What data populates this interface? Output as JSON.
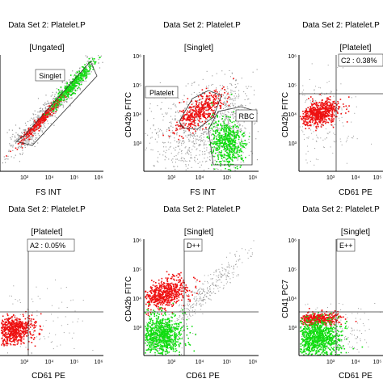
{
  "figure": "flow-cytometry-grid",
  "colors": {
    "red_population": "#ee1111",
    "green_population": "#11dd11",
    "gray_events": "#9a9a9a",
    "axis": "#000000",
    "gate_line": "#333333",
    "label_box": "#ffffff"
  },
  "chart_data": [
    {
      "type": "scatter",
      "title": "Data Set 2: Platelet.P",
      "gate": "[Ungated]",
      "xlabel": "FS INT",
      "ylabel": "",
      "x_ticks": [
        "10³",
        "10⁴",
        "10⁵",
        "10⁶"
      ],
      "y_ticks": [],
      "x_scale": "log",
      "regions": [
        {
          "label": "Singlet",
          "shape": "diagonal band"
        }
      ],
      "populations": [
        "gray diagonal events",
        "red population on singlet diagonal",
        "green population on singlet diagonal"
      ]
    },
    {
      "type": "scatter",
      "title": "Data Set 2: Platelet.P",
      "gate": "[Singlet]",
      "xlabel": "FS INT",
      "ylabel": "CD42b FITC",
      "x_ticks": [
        "10³",
        "10⁴",
        "10⁵",
        "10⁶"
      ],
      "y_ticks": [
        "10³",
        "10⁴",
        "10⁵",
        "10⁶"
      ],
      "x_scale": "log",
      "y_scale": "log",
      "regions": [
        {
          "label": "Platelet"
        },
        {
          "label": "RBC"
        }
      ],
      "populations": [
        "red platelets",
        "green red blood cells",
        "gray debris"
      ]
    },
    {
      "type": "scatter",
      "title": "Data Set 2: Platelet.P",
      "gate": "[Platelet]",
      "xlabel": "CD61 PE",
      "ylabel": "CD42b FITC",
      "x_ticks": [
        "10³",
        "10⁴",
        "10⁵",
        "10⁶"
      ],
      "y_ticks": [
        "10³",
        "10⁴",
        "10⁵",
        "10⁶"
      ],
      "x_scale": "log",
      "y_scale": "log",
      "quadrant_label": "C2 : 0.38%",
      "populations": [
        "red population upper-left quadrant"
      ]
    },
    {
      "type": "scatter",
      "title": "Data Set 2: Platelet.P",
      "gate": "[Platelet]",
      "xlabel": "CD61 PE",
      "ylabel": "",
      "x_ticks": [
        "10³",
        "10⁴",
        "10⁵",
        "10⁶"
      ],
      "y_ticks": [],
      "x_scale": "log",
      "quadrant_label": "A2 : 0.05%",
      "populations": [
        "red population lower-left quadrant"
      ]
    },
    {
      "type": "scatter",
      "title": "Data Set 2: Platelet.P",
      "gate": "[Singlet]",
      "xlabel": "CD61 PE",
      "ylabel": "CD42b FITC",
      "x_ticks": [
        "10³",
        "10⁴",
        "10⁵",
        "10⁶"
      ],
      "y_ticks": [
        "10³",
        "10⁴",
        "10⁵",
        "10⁶"
      ],
      "x_scale": "log",
      "y_scale": "log",
      "quadrant_label": "D++",
      "populations": [
        "red population upper-left",
        "green population lower-left"
      ]
    },
    {
      "type": "scatter",
      "title": "Data Set 2: Platelet.P",
      "gate": "[Singlet]",
      "xlabel": "CD61 PE",
      "ylabel": "CD41 PC7",
      "x_ticks": [
        "10³",
        "10⁴",
        "10⁵",
        "10⁶"
      ],
      "y_ticks": [
        "10³",
        "10⁴",
        "10⁵",
        "10⁶"
      ],
      "x_scale": "log",
      "y_scale": "log",
      "quadrant_label": "E++",
      "populations": [
        "red population lower-left (upper portion)",
        "green population lower-left"
      ]
    }
  ]
}
